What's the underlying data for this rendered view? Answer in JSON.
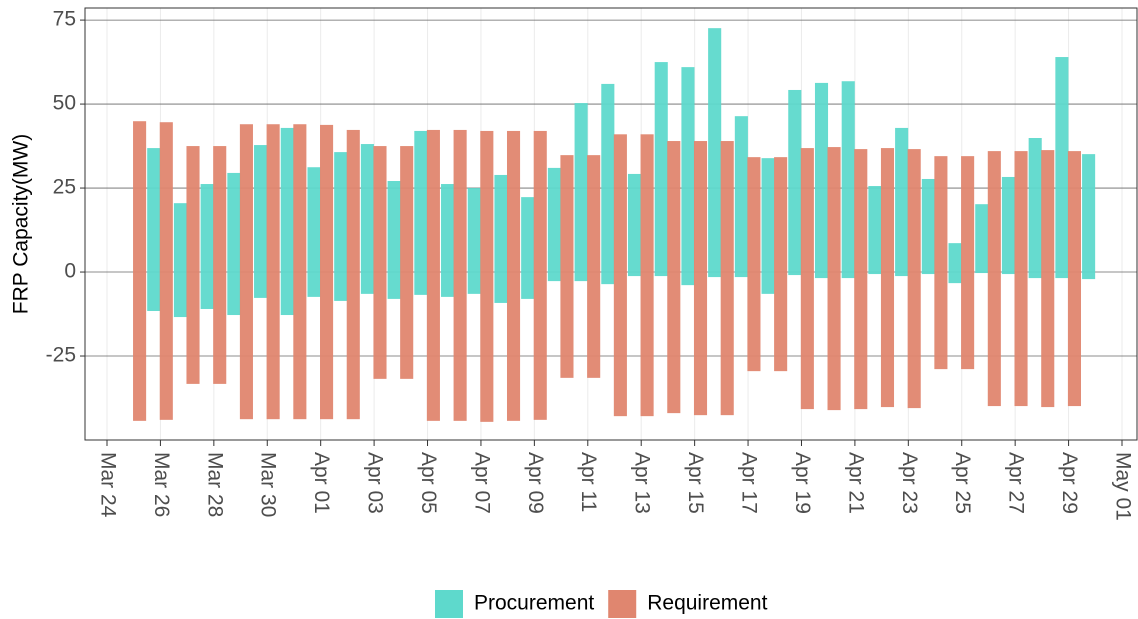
{
  "chart_data": {
    "type": "range-bar",
    "y_label": "FRP Capacity(MW)",
    "x": [
      "03-25",
      "03-26",
      "03-27",
      "03-28",
      "03-29",
      "03-30",
      "03-31",
      "04-01",
      "04-02",
      "04-03",
      "04-04",
      "04-05",
      "04-06",
      "04-07",
      "04-08",
      "04-09",
      "04-10",
      "04-11",
      "04-12",
      "04-13",
      "04-14",
      "04-15",
      "04-16",
      "04-17",
      "04-18",
      "04-19",
      "04-20",
      "04-21",
      "04-22",
      "04-23",
      "04-24",
      "04-25",
      "04-26",
      "04-27",
      "04-28",
      "04-29",
      "04-30"
    ],
    "series": [
      {
        "name": "Procurement",
        "color": "#5ed9cc",
        "low": [
          null,
          -11.6,
          -13.4,
          -11,
          -12.8,
          -7.7,
          -12.8,
          -7.4,
          -8.6,
          -6.5,
          -8,
          -6.8,
          -7.4,
          -6.5,
          -9.2,
          -8,
          -2.7,
          -2.7,
          -3.6,
          -1.2,
          -1.2,
          -3.9,
          -1.5,
          -1.5,
          -6.5,
          -0.9,
          -1.8,
          -1.8,
          -0.6,
          -1.2,
          -0.6,
          -3.3,
          -0.3,
          -0.6,
          -1.8,
          -1.8,
          -2.1
        ],
        "high": [
          null,
          36.9,
          20.5,
          26.2,
          29.5,
          37.8,
          42.9,
          31.2,
          35.7,
          38.1,
          27.1,
          42,
          26.2,
          25,
          28.9,
          22.3,
          31,
          50.3,
          56,
          29.2,
          62.5,
          61,
          72.6,
          46.4,
          33.9,
          54.2,
          56.3,
          56.8,
          25.6,
          42.9,
          27.7,
          8.6,
          20.2,
          28.3,
          39.9,
          64,
          35.1
        ]
      },
      {
        "name": "Requirement",
        "color": "#e0866f",
        "low": [
          -44.3,
          -44,
          -33.3,
          -33.3,
          -43.8,
          -43.8,
          -43.8,
          -43.8,
          -43.8,
          -31.8,
          -31.8,
          -44.3,
          -44.3,
          -44.6,
          -44.3,
          -44,
          -31.5,
          -31.5,
          -42.9,
          -42.9,
          -42,
          -42.6,
          -42.6,
          -29.5,
          -29.5,
          -40.8,
          -41.1,
          -40.8,
          -40.2,
          -40.5,
          -28.9,
          -28.9,
          -39.9,
          -39.9,
          -40.2,
          -39.9,
          null
        ],
        "high": [
          44.9,
          44.6,
          37.5,
          37.5,
          44,
          44,
          44,
          43.8,
          42.3,
          37.5,
          37.5,
          42.3,
          42.3,
          42,
          42,
          42,
          34.8,
          34.8,
          41,
          41,
          39,
          39,
          39,
          34.2,
          34.2,
          36.9,
          37.2,
          36.6,
          36.9,
          36.6,
          34.5,
          34.5,
          36,
          36,
          36.3,
          36,
          null
        ]
      }
    ],
    "xlim": [
      "03-24",
      "05-01"
    ],
    "xticks": [
      {
        "value": "03-24",
        "label": "Mar 24"
      },
      {
        "value": "03-26",
        "label": "Mar 26"
      },
      {
        "value": "03-28",
        "label": "Mar 28"
      },
      {
        "value": "03-30",
        "label": "Mar 30"
      },
      {
        "value": "04-01",
        "label": "Apr 01"
      },
      {
        "value": "04-03",
        "label": "Apr 03"
      },
      {
        "value": "04-05",
        "label": "Apr 05"
      },
      {
        "value": "04-07",
        "label": "Apr 07"
      },
      {
        "value": "04-09",
        "label": "Apr 09"
      },
      {
        "value": "04-11",
        "label": "Apr 11"
      },
      {
        "value": "04-13",
        "label": "Apr 13"
      },
      {
        "value": "04-15",
        "label": "Apr 15"
      },
      {
        "value": "04-17",
        "label": "Apr 17"
      },
      {
        "value": "04-19",
        "label": "Apr 19"
      },
      {
        "value": "04-21",
        "label": "Apr 21"
      },
      {
        "value": "04-23",
        "label": "Apr 23"
      },
      {
        "value": "04-25",
        "label": "Apr 25"
      },
      {
        "value": "04-27",
        "label": "Apr 27"
      },
      {
        "value": "04-29",
        "label": "Apr 29"
      },
      {
        "value": "05-01",
        "label": "May 01"
      }
    ],
    "ylim": [
      -50,
      78.6
    ],
    "yticks": [
      -25,
      0,
      25,
      50,
      75
    ],
    "grid": true,
    "legend": "bottom"
  }
}
